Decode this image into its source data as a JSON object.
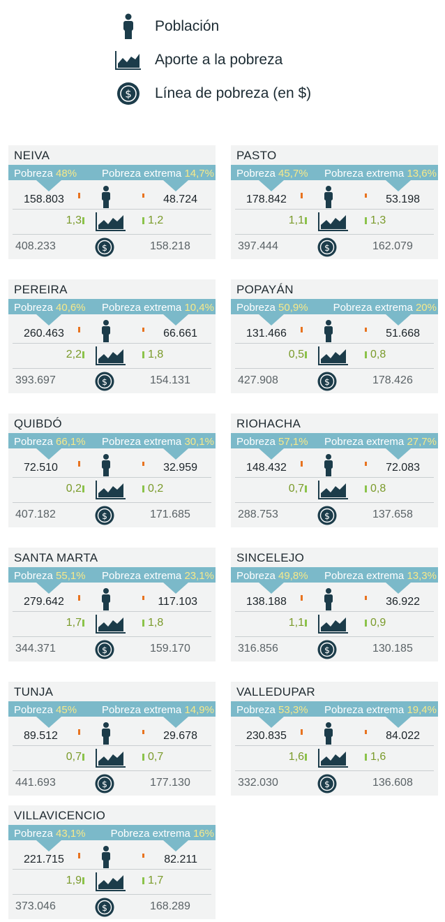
{
  "legend": [
    {
      "icon": "person-icon",
      "label": "Población"
    },
    {
      "icon": "area-chart-icon",
      "label": "Aporte a la pobreza"
    },
    {
      "icon": "dollar-coin-icon",
      "label": "Línea de pobreza (en $)"
    }
  ],
  "labels": {
    "pobreza": "Pobreza",
    "pobreza_extrema": "Pobreza extrema"
  },
  "colors": {
    "banner": "#7bb9c9",
    "accent": "#f7e98a",
    "orange": "#e8731f",
    "green": "#8bc34a",
    "dark": "#1c3c4a"
  },
  "cities": [
    {
      "name": "NEIVA",
      "pobreza": "48%",
      "extrema": "14,7%",
      "pob_pobres": "158.803",
      "pob_extrema": "48.724",
      "aporte_pobreza": "1,3",
      "aporte_extrema": "1,2",
      "linea_pobreza": "408.233",
      "linea_extrema": "158.218"
    },
    {
      "name": "PASTO",
      "pobreza": "45,7%",
      "extrema": "13,6%",
      "pob_pobres": "178.842",
      "pob_extrema": "53.198",
      "aporte_pobreza": "1,1",
      "aporte_extrema": "1,3",
      "linea_pobreza": "397.444",
      "linea_extrema": "162.079"
    },
    {
      "name": "PEREIRA",
      "pobreza": "40,6%",
      "extrema": "10,4%",
      "pob_pobres": "260.463",
      "pob_extrema": "66.661",
      "aporte_pobreza": "2,2",
      "aporte_extrema": "1,8",
      "linea_pobreza": "393.697",
      "linea_extrema": "154.131"
    },
    {
      "name": "POPAYÁN",
      "pobreza": "50,9%",
      "extrema": "20%",
      "pob_pobres": "131.466",
      "pob_extrema": "51.668",
      "aporte_pobreza": "0,5",
      "aporte_extrema": "0,8",
      "linea_pobreza": "427.908",
      "linea_extrema": "178.426"
    },
    {
      "name": "QUIBDÓ",
      "pobreza": "66,1%",
      "extrema": "30,1%",
      "pob_pobres": "72.510",
      "pob_extrema": "32.959",
      "aporte_pobreza": "0,2",
      "aporte_extrema": "0,2",
      "linea_pobreza": "407.182",
      "linea_extrema": "171.685"
    },
    {
      "name": "RIOHACHA",
      "pobreza": "57,1%",
      "extrema": "27,7%",
      "pob_pobres": "148.432",
      "pob_extrema": "72.083",
      "aporte_pobreza": "0,7",
      "aporte_extrema": "0,8",
      "linea_pobreza": "288.753",
      "linea_extrema": "137.658"
    },
    {
      "name": "SANTA MARTA",
      "pobreza": "55,1%",
      "extrema": "23,1%",
      "pob_pobres": "279.642",
      "pob_extrema": "117.103",
      "aporte_pobreza": "1,7",
      "aporte_extrema": "1,8",
      "linea_pobreza": "344.371",
      "linea_extrema": "159.170"
    },
    {
      "name": "SINCELEJO",
      "pobreza": "49,8%",
      "extrema": "13,3%",
      "pob_pobres": "138.188",
      "pob_extrema": "36.922",
      "aporte_pobreza": "1,1",
      "aporte_extrema": "0,9",
      "linea_pobreza": "316.856",
      "linea_extrema": "130.185"
    },
    {
      "name": "TUNJA",
      "pobreza": "45%",
      "extrema": "14,9%",
      "pob_pobres": "89.512",
      "pob_extrema": "29.678",
      "aporte_pobreza": "0,7",
      "aporte_extrema": "0,7",
      "linea_pobreza": "441.693",
      "linea_extrema": "177.130"
    },
    {
      "name": "VALLEDUPAR",
      "pobreza": "53,3%",
      "extrema": "19,4%",
      "pob_pobres": "230.835",
      "pob_extrema": "84.022",
      "aporte_pobreza": "1,6",
      "aporte_extrema": "1,6",
      "linea_pobreza": "332.030",
      "linea_extrema": "136.608"
    },
    {
      "name": "VILLAVICENCIO",
      "pobreza": "43,1%",
      "extrema": "16%",
      "pob_pobres": "221.715",
      "pob_extrema": "82.211",
      "aporte_pobreza": "1,9",
      "aporte_extrema": "1,7",
      "linea_pobreza": "373.046",
      "linea_extrema": "168.289"
    }
  ]
}
